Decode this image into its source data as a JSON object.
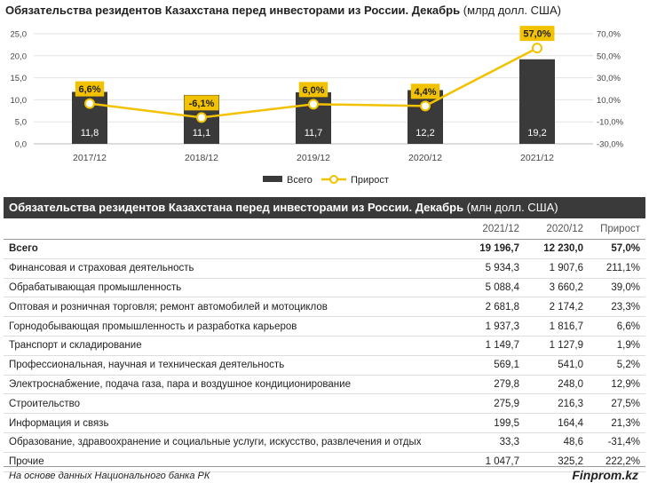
{
  "chart": {
    "title_bold": "Обязательства резидентов Казахстана перед инвесторами из России. Декабрь",
    "title_unit": "(млрд долл. США)"
  },
  "chart_data": {
    "type": "bar+line",
    "categories": [
      "2017/12",
      "2018/12",
      "2019/12",
      "2020/12",
      "2021/12"
    ],
    "series": [
      {
        "name": "Всего",
        "type": "bar",
        "axis": "left",
        "values": [
          11.8,
          11.1,
          11.7,
          12.2,
          19.2
        ],
        "labels": [
          "11,8",
          "11,1",
          "11,7",
          "12,2",
          "19,2"
        ],
        "color": "#3a3a3a"
      },
      {
        "name": "Прирост",
        "type": "line",
        "axis": "right",
        "values": [
          6.6,
          -6.1,
          6.0,
          4.4,
          57.0
        ],
        "labels": [
          "6,6%",
          "-6,1%",
          "6,0%",
          "4,4%",
          "57,0%"
        ],
        "color": "#f2c200"
      }
    ],
    "y_left": {
      "min": 0,
      "max": 25,
      "ticks": [
        "0,0",
        "5,0",
        "10,0",
        "15,0",
        "20,0",
        "25,0"
      ]
    },
    "y_right": {
      "min": -30,
      "max": 70,
      "ticks": [
        "-30,0%",
        "-10,0%",
        "10,0%",
        "30,0%",
        "50,0%",
        "70,0%"
      ]
    },
    "grid": true,
    "legend": "bottom"
  },
  "table": {
    "title_bold": "Обязательства резидентов Казахстана перед инвесторами из России. Декабрь",
    "title_unit": "(млн долл. США)",
    "headers": [
      "",
      "2021/12",
      "2020/12",
      "Прирост"
    ],
    "rows": [
      {
        "name": "Всего",
        "v2021": "19 196,7",
        "v2020": "12 230,0",
        "growth": "57,0%",
        "total": true
      },
      {
        "name": "Финансовая и страховая деятельность",
        "v2021": "5 934,3",
        "v2020": "1 907,6",
        "growth": "211,1%"
      },
      {
        "name": "Обрабатывающая промышленность",
        "v2021": "5 088,4",
        "v2020": "3 660,2",
        "growth": "39,0%"
      },
      {
        "name": "Оптовая и розничная торговля; ремонт автомобилей и мотоциклов",
        "v2021": "2 681,8",
        "v2020": "2 174,2",
        "growth": "23,3%"
      },
      {
        "name": "Горнодобывающая промышленность и разработка карьеров",
        "v2021": "1 937,3",
        "v2020": "1 816,7",
        "growth": "6,6%"
      },
      {
        "name": "Транспорт и складирование",
        "v2021": "1 149,7",
        "v2020": "1 127,9",
        "growth": "1,9%"
      },
      {
        "name": "Профессиональная, научная и техническая деятельность",
        "v2021": "569,1",
        "v2020": "541,0",
        "growth": "5,2%"
      },
      {
        "name": "Электроснабжение, подача газа, пара и воздушное кондиционирование",
        "v2021": "279,8",
        "v2020": "248,0",
        "growth": "12,9%"
      },
      {
        "name": "Строительство",
        "v2021": "275,9",
        "v2020": "216,3",
        "growth": "27,5%"
      },
      {
        "name": "Информация и связь",
        "v2021": "199,5",
        "v2020": "164,4",
        "growth": "21,3%"
      },
      {
        "name": "Образование, здравоохранение и социальные услуги, искусство, развлечения и отдых",
        "v2021": "33,3",
        "v2020": "48,6",
        "growth": "-31,4%"
      },
      {
        "name": "Прочие",
        "v2021": "1 047,7",
        "v2020": "325,2",
        "growth": "222,2%"
      }
    ]
  },
  "footer": {
    "source": "На основе данных Национального банка РК",
    "brand": "Finprom.kz"
  }
}
